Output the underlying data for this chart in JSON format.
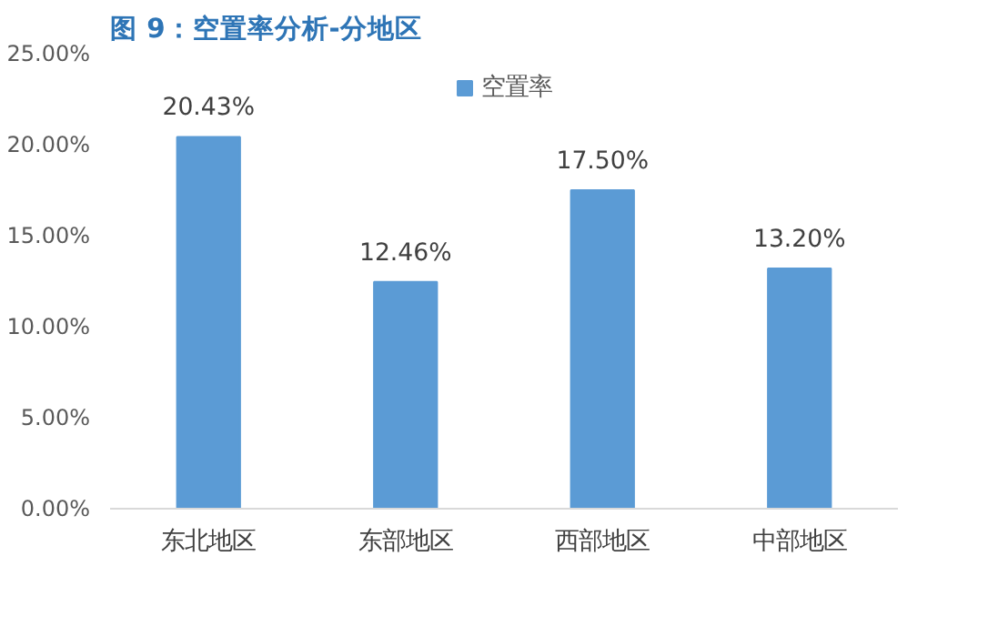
{
  "chart_data": {
    "type": "bar",
    "title": "图 9：空置率分析-分地区",
    "categories": [
      "东北地区",
      "东部地区",
      "西部地区",
      "中部地区"
    ],
    "series": [
      {
        "name": "空置率",
        "color": "#5b9bd5",
        "values": [
          20.43,
          12.46,
          17.5,
          13.2
        ],
        "value_labels": [
          "20.43%",
          "12.46%",
          "17.50%",
          "13.20%"
        ]
      }
    ],
    "ylim": [
      0,
      25
    ],
    "yticks": [
      {
        "value": 0,
        "label": "0.00%"
      },
      {
        "value": 5,
        "label": "5.00%"
      },
      {
        "value": 10,
        "label": "10.00%"
      },
      {
        "value": 15,
        "label": "15.00%"
      },
      {
        "value": 20,
        "label": "20.00%"
      },
      {
        "value": 25,
        "label": "25.00%"
      }
    ],
    "grid": false,
    "legend": "top"
  }
}
